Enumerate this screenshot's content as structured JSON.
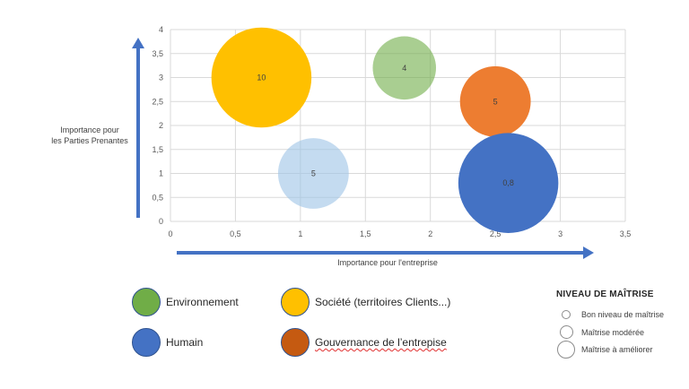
{
  "chart_data": {
    "type": "bubble",
    "title": "",
    "xlabel": "Importance pour l'entreprise",
    "ylabel": [
      "Importance pour",
      "les Parties Prenantes"
    ],
    "xlim": [
      0,
      3.5
    ],
    "ylim": [
      0,
      4
    ],
    "x_ticks": [
      "0",
      "0,5",
      "1",
      "1,5",
      "2",
      "2,5",
      "3",
      "3,5"
    ],
    "y_ticks": [
      "0",
      "0,5",
      "1",
      "1,5",
      "2",
      "2,5",
      "3",
      "3,5",
      "4"
    ],
    "grid": true,
    "points": [
      {
        "x": 0.7,
        "y": 3.0,
        "label": "10",
        "category": "Société (territoires Clients...)",
        "color": "#ffc000",
        "opacity": 1.0,
        "size": 10
      },
      {
        "x": 1.8,
        "y": 3.2,
        "label": "4",
        "category": "Environnement",
        "color": "#70ad47",
        "opacity": 0.6,
        "size": 4
      },
      {
        "x": 2.5,
        "y": 2.5,
        "label": "5",
        "category": "Gouvernance de l'entrepise",
        "color": "#ed7d31",
        "opacity": 1.0,
        "size": 5
      },
      {
        "x": 1.1,
        "y": 1.0,
        "label": "5",
        "category": "Humain",
        "color": "#9dc3e6",
        "opacity": 0.6,
        "size": 5
      },
      {
        "x": 2.6,
        "y": 0.8,
        "label": "0,8",
        "category": "Humain",
        "color": "#4472c4",
        "opacity": 1.0,
        "size": 10
      }
    ]
  },
  "legend": {
    "items": [
      {
        "label": "Environnement",
        "color": "#70ad47"
      },
      {
        "label": "Société (territoires Clients...)",
        "color": "#ffc000"
      },
      {
        "label": "Humain",
        "color": "#4472c4"
      },
      {
        "label": "Gouvernance de l’entrepise",
        "color": "#c55a11"
      }
    ]
  },
  "mastery": {
    "title": "NIVEAU DE MAÎTRISE",
    "levels": [
      {
        "label": "Bon niveau de maîtrise",
        "level": 1
      },
      {
        "label": "Maîtrise modérée",
        "level": 2
      },
      {
        "label": "Maîtrise à améliorer",
        "level": 3
      }
    ]
  }
}
